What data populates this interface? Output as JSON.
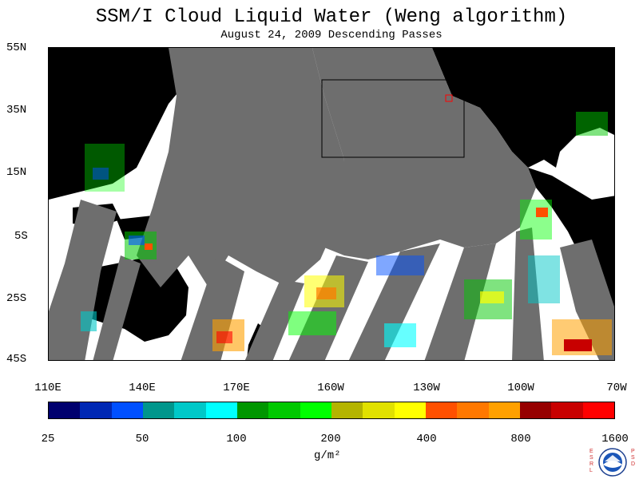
{
  "header": {
    "title": "SSM/I Cloud Liquid Water (Weng algorithm)",
    "subtitle": "August 24, 2009  Descending Passes"
  },
  "map": {
    "lat_labels": [
      "55N",
      "35N",
      "15N",
      "5S",
      "25S",
      "45S"
    ],
    "lon_labels": [
      "110E",
      "140E",
      "170E",
      "160W",
      "130W",
      "100W",
      "70W"
    ],
    "colors": {
      "land": "#000000",
      "no_data": "#6e6e6e",
      "clear": "#ffffff"
    }
  },
  "colorbar": {
    "colors": [
      "#00006e",
      "#0028b4",
      "#0050ff",
      "#00968c",
      "#00c8c8",
      "#00ffff",
      "#009600",
      "#00c800",
      "#00ff00",
      "#b4b400",
      "#e1e100",
      "#ffff00",
      "#ff5000",
      "#ff7800",
      "#ffa000",
      "#960000",
      "#c80000",
      "#ff0000"
    ],
    "labels": [
      "25",
      "50",
      "100",
      "200",
      "400",
      "800",
      "1600"
    ],
    "unit": "g/m²"
  },
  "logo": {
    "left_text": "ESRL",
    "right_text": "PSD",
    "emblem": "noaa-logo-icon"
  }
}
